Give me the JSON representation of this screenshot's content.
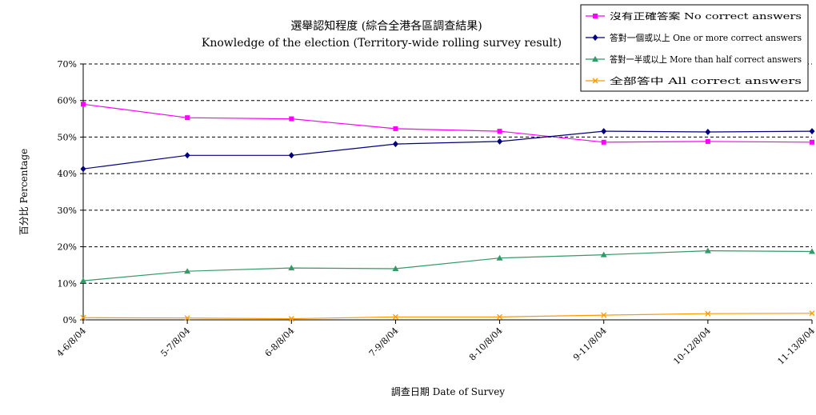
{
  "chart_data": {
    "type": "line",
    "title": "選舉認知程度 (綜合全港各區調查結果)",
    "subtitle": "Knowledge of the election (Territory-wide rolling survey result)",
    "xlabel": "調查日期 Date of Survey",
    "ylabel": "百分比 Percentage",
    "categories": [
      "4-6/8/04",
      "5-7/8/04",
      "6-8/8/04",
      "7-9/8/04",
      "8-10/8/04",
      "9-11/8/04",
      "10-12/8/04",
      "11-13/8/04"
    ],
    "ylim": [
      0,
      70
    ],
    "yticks": [
      0,
      10,
      20,
      30,
      40,
      50,
      60,
      70
    ],
    "ytick_labels": [
      "0%",
      "10%",
      "20%",
      "30%",
      "40%",
      "50%",
      "60%",
      "70%"
    ],
    "grid": true,
    "legend_position": "top-right",
    "series": [
      {
        "name": "沒有正確答案 No correct answers",
        "color": "#ff00ff",
        "marker": "square",
        "values": [
          59,
          55.3,
          55,
          52.3,
          51.6,
          48.6,
          48.8,
          48.6
        ]
      },
      {
        "name": "答對一個或以上 One or more correct answers",
        "color": "#000080",
        "marker": "diamond",
        "values": [
          41.3,
          45,
          45,
          48.1,
          48.8,
          51.6,
          51.4,
          51.6
        ]
      },
      {
        "name": "答對一半或以上 More than half correct answers",
        "color": "#339966",
        "marker": "triangle",
        "values": [
          10.7,
          13.3,
          14.2,
          14,
          16.9,
          17.8,
          18.9,
          18.7
        ]
      },
      {
        "name": "全部答中 All correct answers",
        "color": "#ff9900",
        "marker": "x",
        "values": [
          0.6,
          0.5,
          0.3,
          0.8,
          0.8,
          1.3,
          1.7,
          1.8
        ]
      }
    ]
  }
}
